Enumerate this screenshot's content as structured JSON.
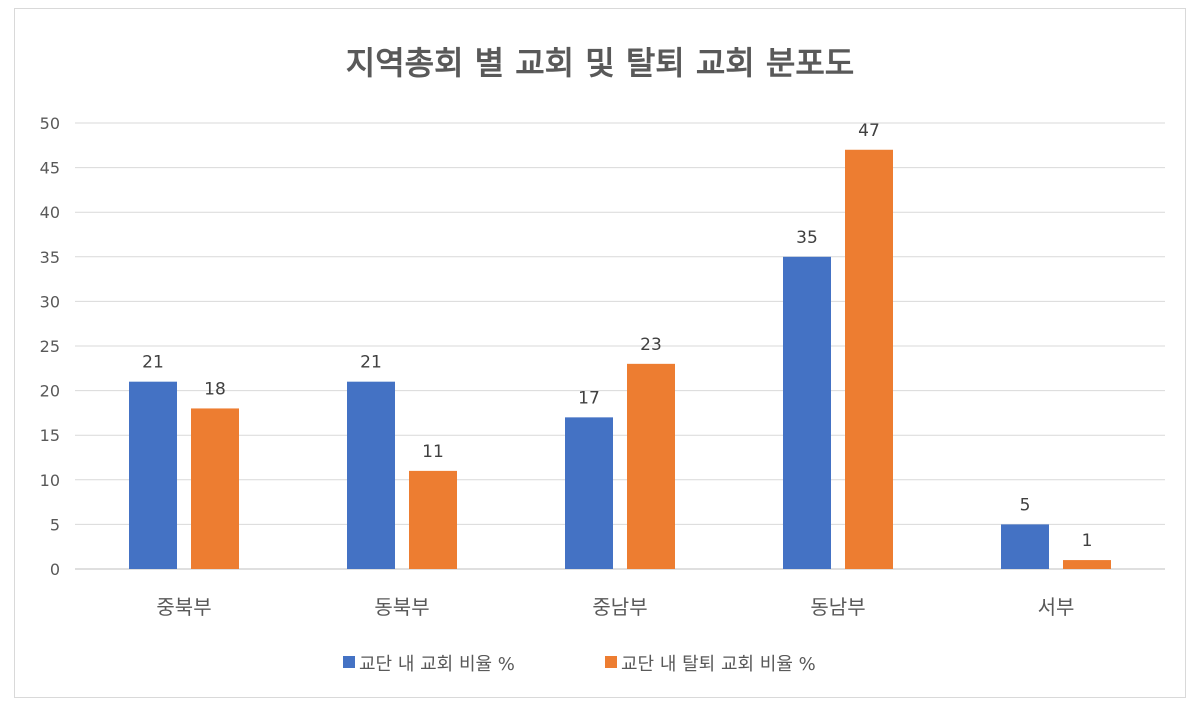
{
  "chart_data": {
    "type": "bar",
    "title": "지역총회 별 교회 및 탈퇴 교회 분포도",
    "categories": [
      "중북부",
      "동북부",
      "중남부",
      "동남부",
      "서부"
    ],
    "series": [
      {
        "name": "교단 내 교회 비율 %",
        "values": [
          21,
          21,
          17,
          35,
          5
        ],
        "color": "#4472C4"
      },
      {
        "name": "교단 내 탈퇴 교회 비율 %",
        "values": [
          18,
          11,
          23,
          47,
          1
        ],
        "color": "#ED7D31"
      }
    ],
    "ylim": [
      0,
      50
    ],
    "yticks": [
      0,
      5,
      10,
      15,
      20,
      25,
      30,
      35,
      40,
      45,
      50
    ],
    "grid": true,
    "data_labels": true,
    "legend": "bottom"
  }
}
